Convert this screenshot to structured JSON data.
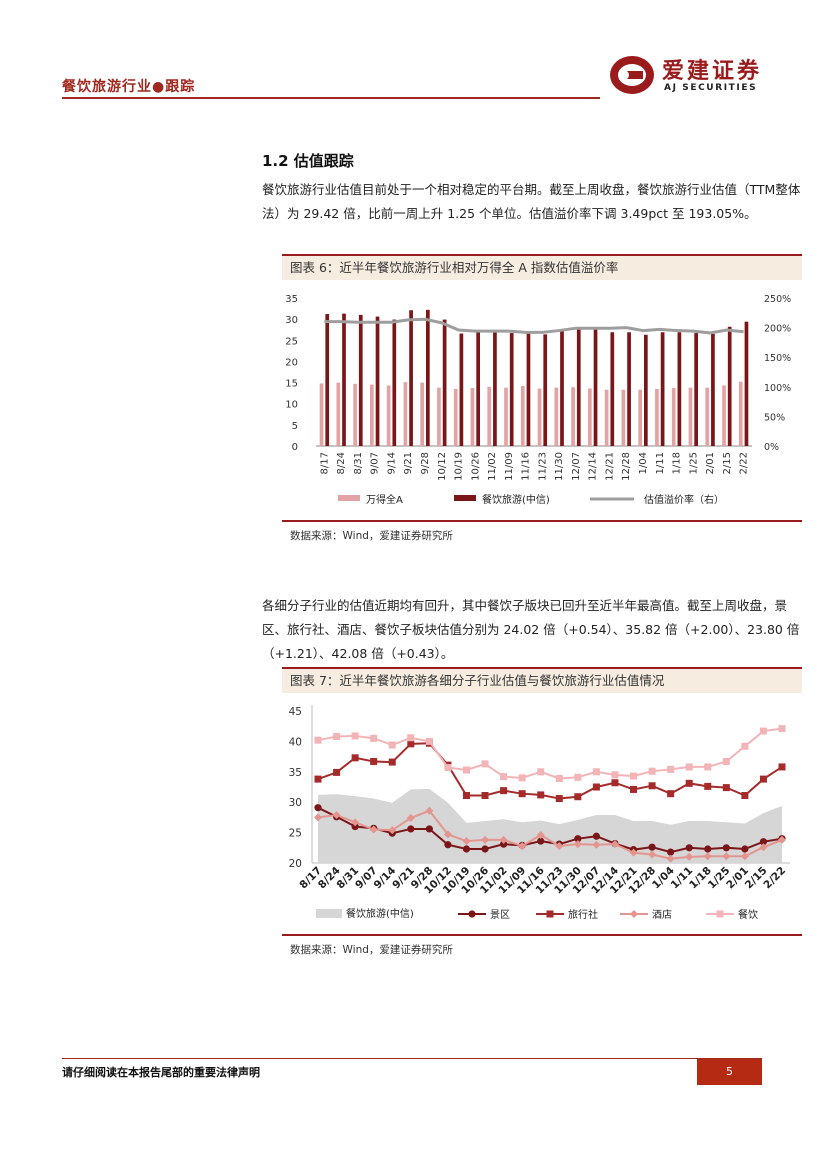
{
  "header": {
    "title": "餐饮旅游行业●跟踪",
    "logo_cn": "爱建证券",
    "logo_en": "AJ SECURITIES"
  },
  "section": {
    "title": "1.2 估值跟踪",
    "para1": "餐饮旅游行业估值目前处于一个相对稳定的平台期。截至上周收盘，餐饮旅游行业估值（TTM整体法）为 29.42 倍，比前一周上升 1.25 个单位。估值溢价率下调 3.49pct 至 193.05%。",
    "para2": "各细分子行业的估值近期均有回升，其中餐饮子版块已回升至近半年最高值。截至上周收盘，景区、旅行社、酒店、餐饮子板块估值分别为 24.02 倍（+0.54）、35.82 倍（+2.00）、23.80 倍（+1.21）、42.08 倍（+0.43）。"
  },
  "figure6": {
    "title": "图表 6：近半年餐饮旅游行业相对万得全 A 指数估值溢价率",
    "source": "数据来源：Wind，爱建证券研究所"
  },
  "figure7": {
    "title": "图表 7：近半年餐饮旅游各细分子行业估值与餐饮旅游行业估值情况",
    "source": "数据来源：Wind，爱建证券研究所"
  },
  "footer": {
    "disclaimer": "请仔细阅读在本报告尾部的重要法律声明",
    "page": "5"
  },
  "colors": {
    "brand": "#a0281e",
    "bar_a": "#e3a2a4",
    "bar_b": "#7a1518",
    "line_premium": "#9e9e9e",
    "area": "#d6d6d6",
    "scenic": "#7a1518",
    "travel": "#a52a2a",
    "hotel": "#e5958f",
    "catering": "#f2b4b6"
  },
  "chart_data": [
    {
      "type": "bar",
      "categories": [
        "8/17",
        "8/24",
        "8/31",
        "9/07",
        "9/14",
        "9/21",
        "9/28",
        "10/12",
        "10/19",
        "10/26",
        "11/02",
        "11/09",
        "11/16",
        "11/23",
        "11/30",
        "12/07",
        "12/14",
        "12/21",
        "12/28",
        "1/04",
        "1/11",
        "1/18",
        "1/25",
        "2/01",
        "2/15",
        "2/22"
      ],
      "series": [
        {
          "name": "万得全A",
          "type": "bar",
          "values": [
            14.8,
            15.0,
            14.7,
            14.5,
            14.3,
            15.1,
            15.0,
            13.8,
            13.5,
            13.7,
            14.0,
            13.8,
            14.2,
            13.6,
            13.8,
            13.9,
            13.6,
            13.3,
            13.3,
            13.3,
            13.5,
            13.7,
            13.8,
            13.8,
            14.3,
            15.2
          ]
        },
        {
          "name": "餐饮旅游(中信)",
          "type": "bar",
          "values": [
            31.2,
            31.3,
            31.0,
            30.6,
            29.9,
            32.1,
            32.2,
            29.9,
            26.6,
            26.9,
            27.2,
            26.7,
            27.0,
            26.4,
            27.1,
            27.9,
            27.9,
            26.9,
            26.9,
            26.3,
            26.9,
            26.9,
            26.7,
            26.5,
            28.2,
            29.4
          ]
        },
        {
          "name": "估值溢价率（右）",
          "type": "line",
          "axis": "right",
          "values": [
            210,
            210,
            209,
            209,
            209,
            213,
            214,
            208,
            196,
            194,
            194,
            194,
            192,
            192,
            195,
            199,
            199,
            199,
            200,
            195,
            197,
            195,
            194,
            191,
            196,
            193
          ]
        }
      ],
      "ylim": [
        0,
        35
      ],
      "yticks": [
        0,
        5,
        10,
        15,
        20,
        25,
        30,
        35
      ],
      "y2lim": [
        0,
        250
      ],
      "y2ticks": [
        "0%",
        "50%",
        "100%",
        "150%",
        "200%",
        "250%"
      ],
      "legend_position": "bottom"
    },
    {
      "type": "line",
      "categories": [
        "8/17",
        "8/24",
        "8/31",
        "9/07",
        "9/14",
        "9/21",
        "9/28",
        "10/12",
        "10/19",
        "10/26",
        "11/02",
        "11/09",
        "11/16",
        "11/23",
        "11/30",
        "12/07",
        "12/14",
        "12/21",
        "12/28",
        "1/04",
        "1/11",
        "1/18",
        "1/25",
        "2/01",
        "2/15",
        "2/22"
      ],
      "series": [
        {
          "name": "餐饮旅游(中信)",
          "type": "area",
          "values": [
            31.2,
            31.3,
            31.0,
            30.6,
            29.9,
            32.1,
            32.2,
            29.9,
            26.6,
            26.9,
            27.2,
            26.7,
            27.0,
            26.4,
            27.1,
            27.9,
            27.9,
            26.9,
            26.9,
            26.3,
            26.9,
            26.9,
            26.7,
            26.5,
            28.2,
            29.4
          ]
        },
        {
          "name": "景区",
          "values": [
            29.1,
            27.6,
            26.0,
            25.7,
            24.9,
            25.6,
            25.6,
            23.0,
            22.3,
            22.3,
            23.1,
            22.9,
            23.6,
            23.1,
            24.0,
            24.4,
            23.2,
            22.2,
            22.6,
            21.8,
            22.5,
            22.3,
            22.5,
            22.3,
            23.5,
            24.0
          ]
        },
        {
          "name": "旅行社",
          "values": [
            33.8,
            34.9,
            37.3,
            36.7,
            36.6,
            39.6,
            39.7,
            36.1,
            31.1,
            31.1,
            31.9,
            31.4,
            31.2,
            30.6,
            30.9,
            32.5,
            33.2,
            32.1,
            32.7,
            31.4,
            33.1,
            32.6,
            32.4,
            31.1,
            33.8,
            35.8
          ]
        },
        {
          "name": "酒店",
          "values": [
            27.5,
            27.9,
            26.7,
            25.5,
            25.4,
            27.4,
            28.6,
            24.7,
            23.6,
            23.8,
            23.8,
            22.8,
            24.6,
            22.8,
            23.1,
            23.0,
            23.1,
            21.7,
            21.4,
            20.7,
            21.0,
            21.1,
            21.1,
            21.1,
            22.6,
            23.8
          ]
        },
        {
          "name": "餐饮",
          "values": [
            40.2,
            40.8,
            40.9,
            40.5,
            39.4,
            40.6,
            40.0,
            35.7,
            35.3,
            36.3,
            34.2,
            34.0,
            35.0,
            33.9,
            34.1,
            35.0,
            34.5,
            34.3,
            35.1,
            35.4,
            35.8,
            35.8,
            36.7,
            39.2,
            41.7,
            42.1
          ]
        }
      ],
      "ylim": [
        20,
        45
      ],
      "yticks": [
        20,
        25,
        30,
        35,
        40,
        45
      ],
      "legend_position": "bottom"
    }
  ]
}
